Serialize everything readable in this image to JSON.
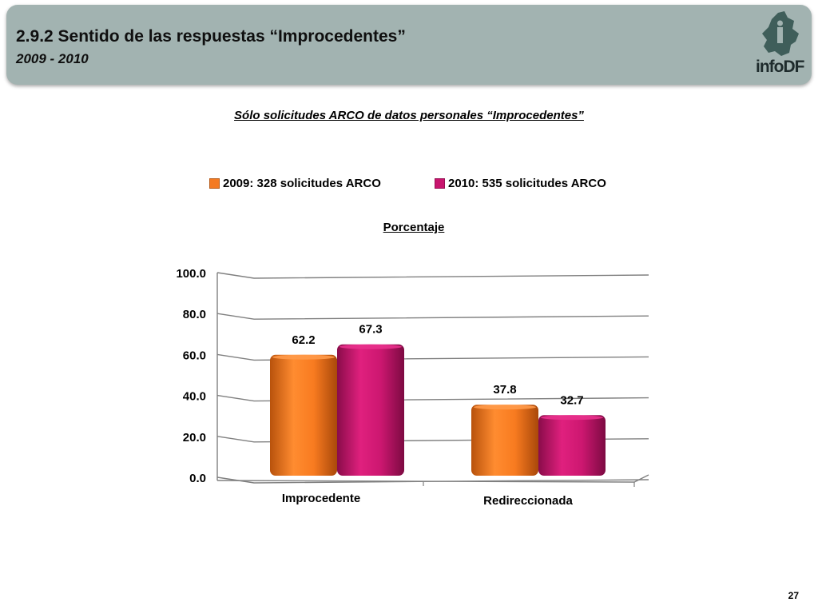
{
  "header": {
    "title": "2.9.2 Sentido de las respuestas “Improcedentes”",
    "subtitle": "2009 - 2010",
    "logo_text": "infoDF"
  },
  "page_number": "27",
  "colors": {
    "header_bg": "#a2b3b1",
    "series_2009": "#f47a22",
    "series_2010": "#c8156e",
    "grid": "#808080"
  },
  "chart_data": {
    "type": "bar",
    "title": "Sólo solicitudes ARCO de datos personales “Improcedentes”",
    "ylabel": "Porcentaje",
    "xlabel": "",
    "categories": [
      "Improcedente",
      "Redireccionada"
    ],
    "series": [
      {
        "name": "2009: 328 solicitudes ARCO",
        "values": [
          62.2,
          37.8
        ],
        "labels": [
          "62.2",
          "37.8"
        ]
      },
      {
        "name": "2010: 535 solicitudes ARCO",
        "values": [
          67.3,
          32.7
        ],
        "labels": [
          "67.3",
          "32.7"
        ]
      }
    ],
    "ylim": [
      0,
      100
    ],
    "yticks": [
      "0.0",
      "20.0",
      "40.0",
      "60.0",
      "80.0",
      "100.0"
    ],
    "legend_position": "top",
    "grid": true
  }
}
